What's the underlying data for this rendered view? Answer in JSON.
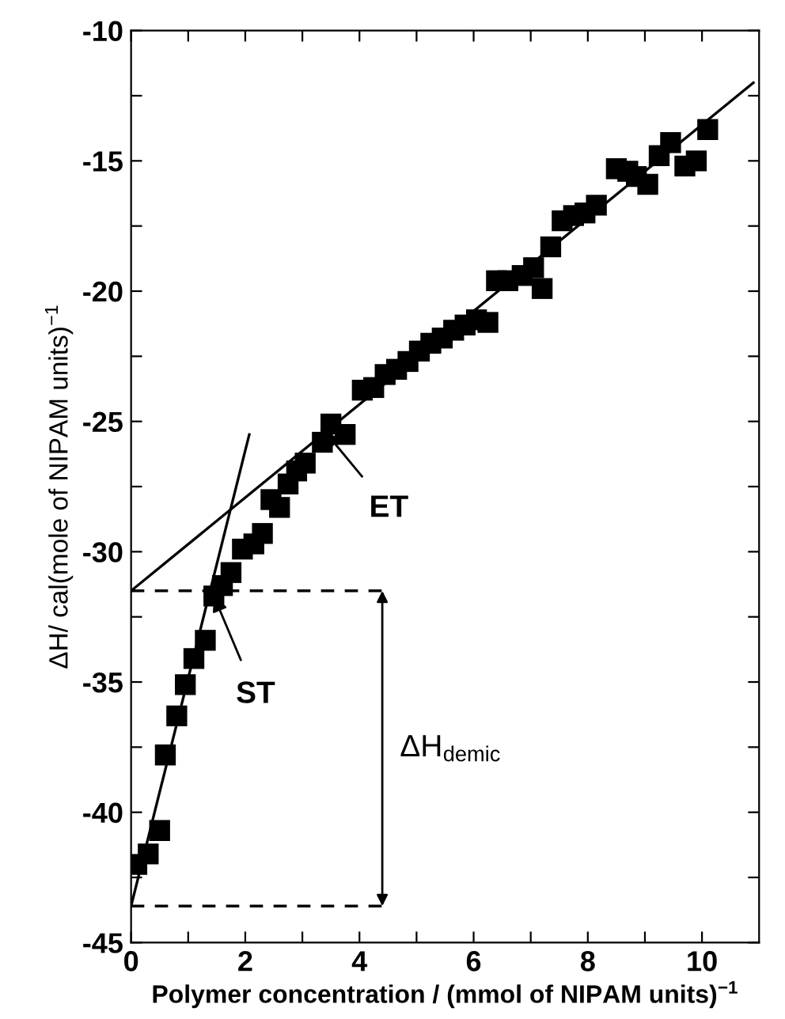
{
  "chart_data": {
    "type": "scatter",
    "xlabel": "Polymer concentration / (mmol of NIPAM units)$^{−1}$",
    "ylabel": "ΔH/ cal(mole of NIPAM units)$^{−1}$",
    "xlim": [
      0,
      11
    ],
    "ylim": [
      -45,
      -10
    ],
    "xticks": [
      0,
      {
        "value": 1,
        "label": null
      },
      2,
      {
        "value": 3,
        "label": null
      },
      4,
      {
        "value": 5,
        "label": null
      },
      6,
      {
        "value": 7,
        "label": null
      },
      8,
      {
        "value": 9,
        "label": null
      },
      10
    ],
    "yticks": [
      -45,
      {
        "value": -42.5,
        "label": null
      },
      -40,
      {
        "value": -37.5,
        "label": null
      },
      -35,
      {
        "value": -32.5,
        "label": null
      },
      -30,
      {
        "value": -27.5,
        "label": null
      },
      -25,
      {
        "value": -22.5,
        "label": null
      },
      -20,
      {
        "value": -17.5,
        "label": null
      },
      -15,
      {
        "value": -12.5,
        "label": null
      },
      -10
    ],
    "grid": false,
    "legend": false,
    "series": [
      {
        "color": "#000000",
        "marker": "square",
        "x": [
          0.1,
          0.3,
          0.5,
          0.6,
          0.8,
          0.95,
          1.1,
          1.3,
          1.45,
          1.6,
          1.75,
          1.95,
          2.15,
          2.3,
          2.45,
          2.6,
          2.75,
          2.9,
          3.05,
          3.35,
          3.5,
          3.75,
          4.05,
          4.25,
          4.45,
          4.65,
          4.85,
          5.05,
          5.25,
          5.45,
          5.65,
          5.85,
          6.05,
          6.25,
          6.4,
          6.6,
          6.85,
          7.05,
          7.2,
          7.35,
          7.55,
          7.75,
          7.95,
          8.15,
          8.5,
          8.7,
          8.85,
          9.05,
          9.25,
          9.45,
          9.7,
          9.9,
          10.1
        ],
        "values": [
          -42.0,
          -41.6,
          -40.7,
          -37.8,
          -36.3,
          -35.1,
          -34.1,
          -33.4,
          -31.7,
          -31.3,
          -30.8,
          -29.9,
          -29.7,
          -29.3,
          -28.0,
          -28.3,
          -27.4,
          -26.9,
          -26.6,
          -25.8,
          -25.1,
          -25.5,
          -23.8,
          -23.7,
          -23.2,
          -23.0,
          -22.7,
          -22.3,
          -22.0,
          -21.8,
          -21.5,
          -21.3,
          -21.1,
          -21.2,
          -19.6,
          -19.6,
          -19.4,
          -19.1,
          -19.9,
          -18.3,
          -17.3,
          -17.1,
          -17.0,
          -16.7,
          -15.3,
          -15.4,
          -15.6,
          -15.9,
          -14.8,
          -14.3,
          -15.2,
          -15.0,
          -13.8
        ]
      },
      {
        "type": "line",
        "color": "#000000",
        "line_style": "solid",
        "x": [
          0,
          2.07
        ],
        "values": [
          -43.6,
          -25.5
        ]
      },
      {
        "type": "line",
        "color": "#000000",
        "line_style": "solid",
        "x": [
          0,
          10.9
        ],
        "values": [
          -31.5,
          -12.0
        ]
      },
      {
        "type": "line",
        "color": "#000000",
        "line_style": "dashed",
        "x": [
          0,
          4.4
        ],
        "values": [
          -31.5,
          -31.5
        ]
      },
      {
        "type": "line",
        "color": "#000000",
        "line_style": "dashed",
        "x": [
          0,
          4.4
        ],
        "values": [
          -43.6,
          -43.6
        ]
      }
    ],
    "annotations": [
      {
        "text": "ST",
        "x": 1.45,
        "y": -31.7
      },
      {
        "text": "ET",
        "x": 3.4,
        "y": -25.4
      },
      "ΔH$_{demic}$"
    ]
  }
}
